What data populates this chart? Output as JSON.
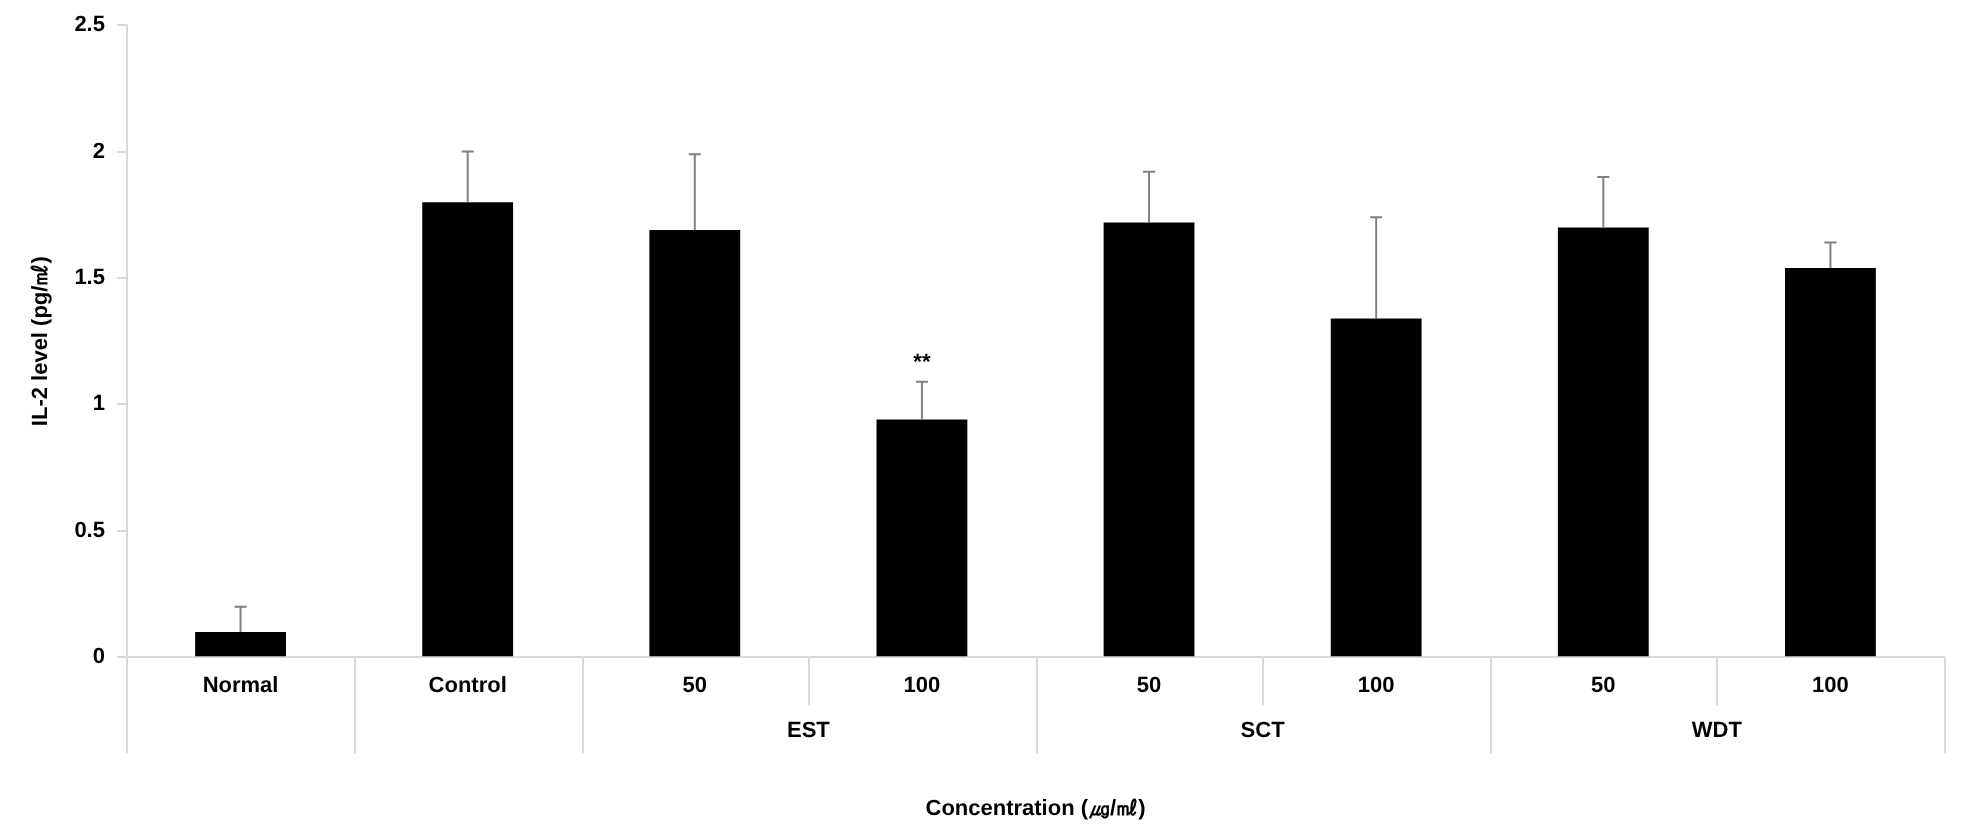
{
  "chart_data": {
    "type": "bar",
    "ylabel": "IL-2 level (pg/㎖)",
    "xlabel": "Concentration (㎍/㎖)",
    "categories": [
      "Normal",
      "Control",
      "50",
      "100",
      "50",
      "100",
      "50",
      "100"
    ],
    "values": [
      0.1,
      1.8,
      1.69,
      0.94,
      1.72,
      1.34,
      1.7,
      1.54
    ],
    "errors": [
      0.1,
      0.2,
      0.3,
      0.15,
      0.2,
      0.4,
      0.2,
      0.1
    ],
    "color": "#000000",
    "ylim": [
      0,
      2.5
    ],
    "yticks": [
      0,
      0.5,
      1,
      1.5,
      2,
      2.5
    ],
    "annotations": [
      {
        "text": "**",
        "x": "100",
        "y": 1.09
      },
      "EST",
      "SCT",
      "WDT"
    ]
  }
}
